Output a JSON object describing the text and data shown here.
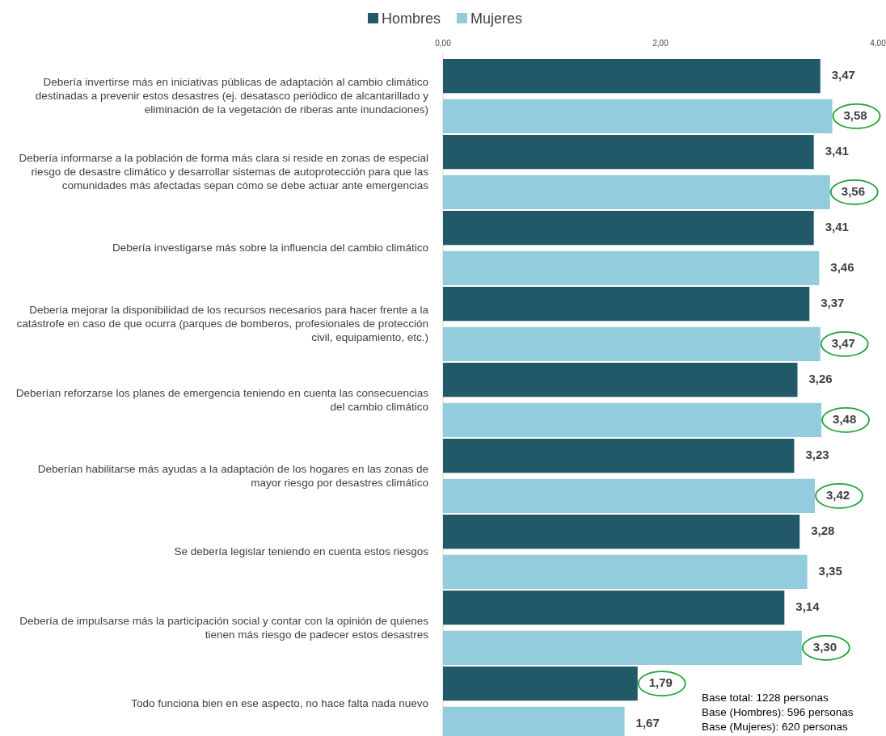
{
  "chart_data": {
    "type": "bar",
    "orientation": "horizontal",
    "categories": [
      "Debería invertirse más en iniciativas públicas de adaptación al cambio climático destinadas a prevenir estos desastres (ej. desatasco periódico de alcantarillado y eliminación de la vegetación de riberas ante inundaciones)",
      "Debería informarse a la población de forma más clara si reside en zonas de especial riesgo de desastre climático y desarrollar sistemas de autoprotección para que las comunidades más afectadas sepan cómo se debe actuar ante emergencias",
      "Debería investigarse más sobre la influencia del cambio climático",
      "Debería mejorar la disponibilidad de los recursos necesarios para hacer frente a la catástrofe en caso de que ocurra (parques de bomberos, profesionales de protección civil, equipamiento, etc.)",
      "Deberían reforzarse los planes de emergencia teniendo en cuenta las consecuencias del cambio climático",
      "Deberían habilitarse más ayudas a la adaptación de los hogares en las zonas de mayor riesgo por desastres climático",
      "Se debería legislar teniendo en cuenta estos riesgos",
      "Debería de impulsarse más la participación social y contar con la opinión de quienes tienen más riesgo de padecer estos desastres",
      "Todo funciona bien en ese aspecto, no hace falta nada nuevo"
    ],
    "series": [
      {
        "name": "Hombres",
        "color": "#215968",
        "values": [
          3.47,
          3.41,
          3.41,
          3.37,
          3.26,
          3.23,
          3.28,
          3.14,
          1.79
        ],
        "value_labels": [
          "3,47",
          "3,41",
          "3,41",
          "3,37",
          "3,26",
          "3,23",
          "3,28",
          "3,14",
          "1,79"
        ]
      },
      {
        "name": "Mujeres",
        "color": "#93cddd",
        "values": [
          3.58,
          3.56,
          3.46,
          3.47,
          3.48,
          3.42,
          3.35,
          3.3,
          1.67
        ],
        "value_labels": [
          "3,58",
          "3,56",
          "3,46",
          "3,47",
          "3,48",
          "3,42",
          "3,35",
          "3,30",
          "1,67"
        ]
      }
    ],
    "xlim": [
      0,
      4
    ],
    "xticks": [
      {
        "value": 0,
        "label": "0,00"
      },
      {
        "value": 2,
        "label": "2,00"
      },
      {
        "value": 4,
        "label": "4,00"
      }
    ],
    "grid": false,
    "legend": "top",
    "annotations": [
      "Base total: 1228 personas",
      "Base (Hombres): 596 personas",
      "Base (Mujeres): 620 personas"
    ]
  }
}
